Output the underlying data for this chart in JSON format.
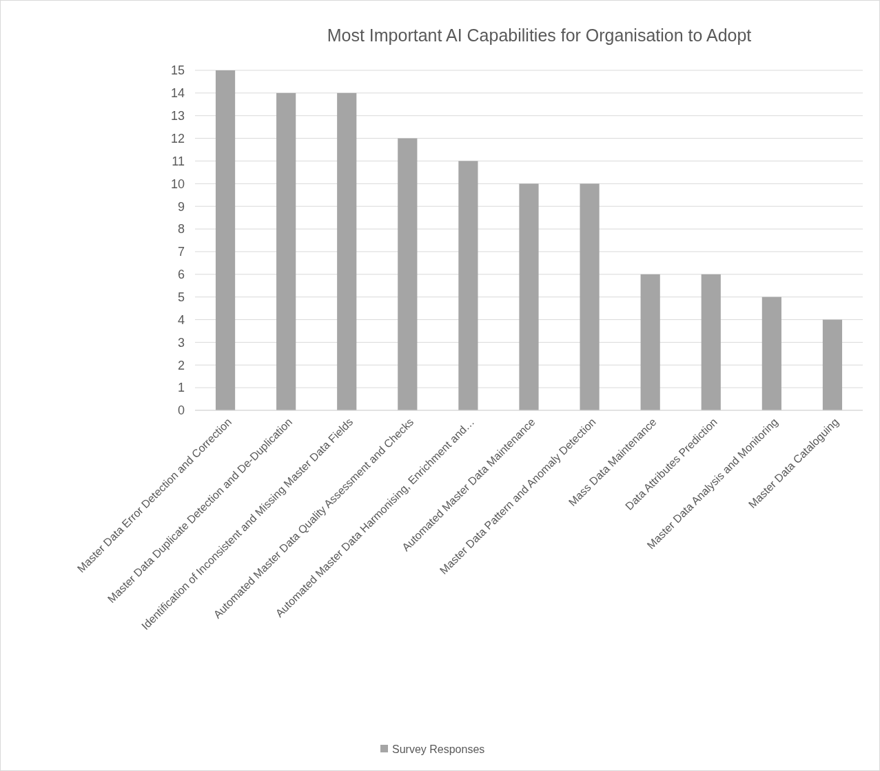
{
  "chart_data": {
    "type": "bar",
    "title": "Most Important AI Capabilities for Organisation to Adopt",
    "categories": [
      "Master Data Error Detection and Correction",
      "Master Data Duplicate Detection and De-Duplication",
      "Identification of Inconsistent and Missing Master Data Fields",
      "Automated Master Data Quality Assessment and Checks",
      "Automated Master Data Harmonising, Enrichment and…",
      "Automated Master Data Maintenance",
      "Master Data Pattern and Anomaly Detection",
      "Mass Data Maintenance",
      "Data Attributes Prediction",
      "Master Data Analysis and Monitoring",
      "Master Data Cataloguing"
    ],
    "series": [
      {
        "name": "Survey Responses",
        "color": "#a5a5a5",
        "values": [
          15,
          14,
          14,
          12,
          11,
          10,
          10,
          6,
          6,
          5,
          4
        ]
      }
    ],
    "ylim": [
      0,
      15
    ],
    "yticks": [
      0,
      1,
      2,
      3,
      4,
      5,
      6,
      7,
      8,
      9,
      10,
      11,
      12,
      13,
      14,
      15
    ],
    "grid": "y",
    "legend": "bottom"
  }
}
